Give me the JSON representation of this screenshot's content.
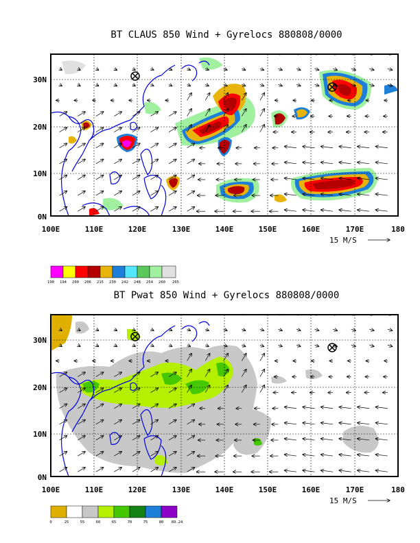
{
  "panels": [
    {
      "title": "BT CLAUS 850 Wind + Gyrelocs 880808/0000",
      "x_ticks": [
        "100E",
        "110E",
        "120E",
        "130E",
        "140E",
        "150E",
        "160E",
        "170E",
        "180"
      ],
      "y_ticks": [
        "0N",
        "10N",
        "20N",
        "30N"
      ],
      "vector_label": "15 M/S",
      "colorbar": {
        "labels": [
          "190",
          "194",
          "200",
          "206",
          "215",
          "230",
          "242",
          "248",
          "254",
          "260",
          "265"
        ],
        "colors": [
          "#ff00ff",
          "#ffff00",
          "#ff0000",
          "#b30000",
          "#e8b40b",
          "#1e7fd8",
          "#55e6ff",
          "#5bc85b",
          "#a0f0a0",
          "#e0e0e0"
        ]
      },
      "markers": [
        {
          "label": "cyclone-marker-1",
          "lon": 119.5,
          "lat": 30.5
        },
        {
          "label": "cyclone-marker-2",
          "lon": 165,
          "lat": 28.5
        }
      ]
    },
    {
      "title": "BT Pwat 850 Wind + Gyrelocs 880808/0000",
      "x_ticks": [
        "100E",
        "110E",
        "120E",
        "130E",
        "140E",
        "150E",
        "160E",
        "170E",
        "180"
      ],
      "y_ticks": [
        "0N",
        "10N",
        "20N",
        "30N"
      ],
      "vector_label": "15 M/S",
      "colorbar": {
        "labels": [
          "0",
          "25",
          "55",
          "60",
          "65",
          "70",
          "75",
          "80",
          "89.24"
        ],
        "colors": [
          "#e0b000",
          "#ffffff",
          "#c8c8c8",
          "#b4f000",
          "#46c800",
          "#148214",
          "#1e7fd8",
          "#8c00c8"
        ]
      },
      "markers": [
        {
          "label": "cyclone-marker-1",
          "lon": 119.5,
          "lat": 30.5
        },
        {
          "label": "cyclone-marker-2",
          "lon": 165,
          "lat": 28.5
        }
      ]
    }
  ]
}
